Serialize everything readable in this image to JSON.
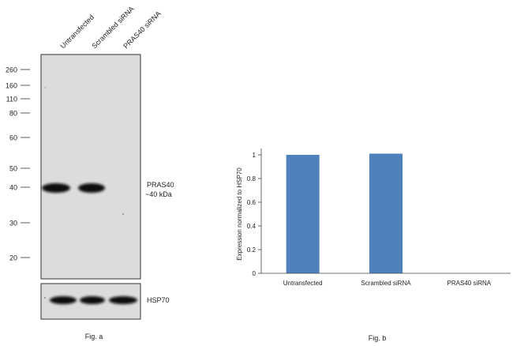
{
  "blot": {
    "lane_labels": [
      "Untransfected",
      "Scrambled siRNA",
      "PRAS40 siRNA"
    ],
    "markers": [
      "260",
      "160",
      "110",
      "80",
      "60",
      "50",
      "40",
      "30",
      "20"
    ],
    "band_label_main": "PRAS40",
    "band_label_size": "~40 kDa",
    "loading_label": "HSP70",
    "caption": "Fig. a"
  },
  "chart_data": {
    "type": "bar",
    "categories": [
      "Untransfected",
      "Scrambled siRNA",
      "PRAS40 siRNA"
    ],
    "values": [
      1.0,
      1.01,
      0.0
    ],
    "ylabel": "Expression  normalized to HSP70",
    "xlabel": "",
    "ylim": [
      0,
      1
    ],
    "yticks": [
      "0",
      "0.2",
      "0.4",
      "0.6",
      "0.8",
      "1"
    ],
    "grid": false,
    "bar_color": "#4f81bd",
    "caption": "Fig. b"
  }
}
